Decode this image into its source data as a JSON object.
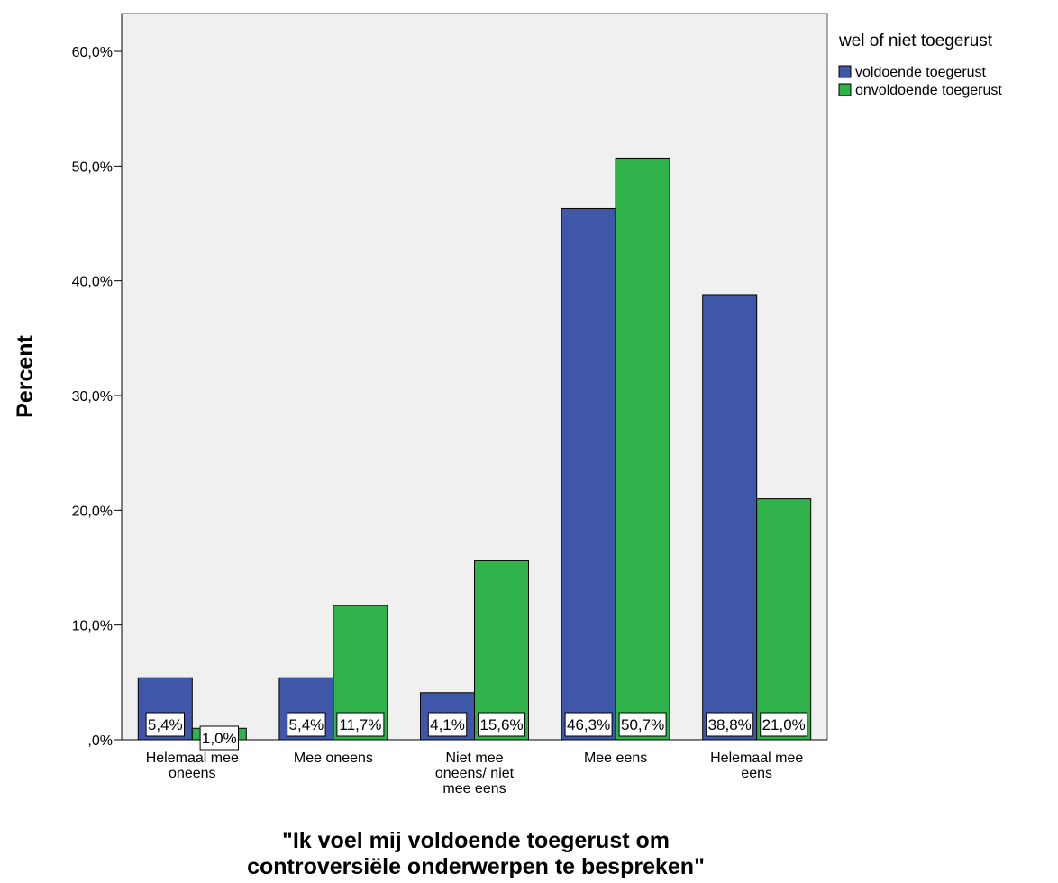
{
  "chart_data": {
    "type": "bar",
    "categories": [
      [
        "Helemaal mee",
        "oneens"
      ],
      [
        "Mee oneens"
      ],
      [
        "Niet mee",
        "oneens/ niet",
        "mee eens"
      ],
      [
        "Mee eens"
      ],
      [
        "Helemaal mee",
        "eens"
      ]
    ],
    "series": [
      {
        "name": "voldoende toegerust",
        "color": "#3f57a8",
        "values": [
          5.4,
          5.4,
          4.1,
          46.3,
          38.8
        ],
        "labels": [
          "5,4%",
          "5,4%",
          "4,1%",
          "46,3%",
          "38,8%"
        ]
      },
      {
        "name": "onvoldoende toegerust",
        "color": "#2fb24a",
        "values": [
          1.0,
          11.7,
          15.6,
          50.7,
          21.0
        ],
        "labels": [
          "1,0%",
          "11,7%",
          "15,6%",
          "50,7%",
          "21,0%"
        ]
      }
    ],
    "ylabel": "Percent",
    "xlabel": [
      "\"Ik voel mij voldoende toegerust om",
      "controversiële onderwerpen te bespreken\""
    ],
    "yticks": [
      0,
      10,
      20,
      30,
      40,
      50,
      60
    ],
    "ytick_labels": [
      ",0%",
      "10,0%",
      "20,0%",
      "30,0%",
      "40,0%",
      "50,0%",
      "60,0%"
    ],
    "ylim": [
      0,
      63.3
    ],
    "legend": {
      "title": "wel of niet toegerust",
      "placement": "top-right outside"
    },
    "background": "#f0f0f0",
    "grid": false
  }
}
